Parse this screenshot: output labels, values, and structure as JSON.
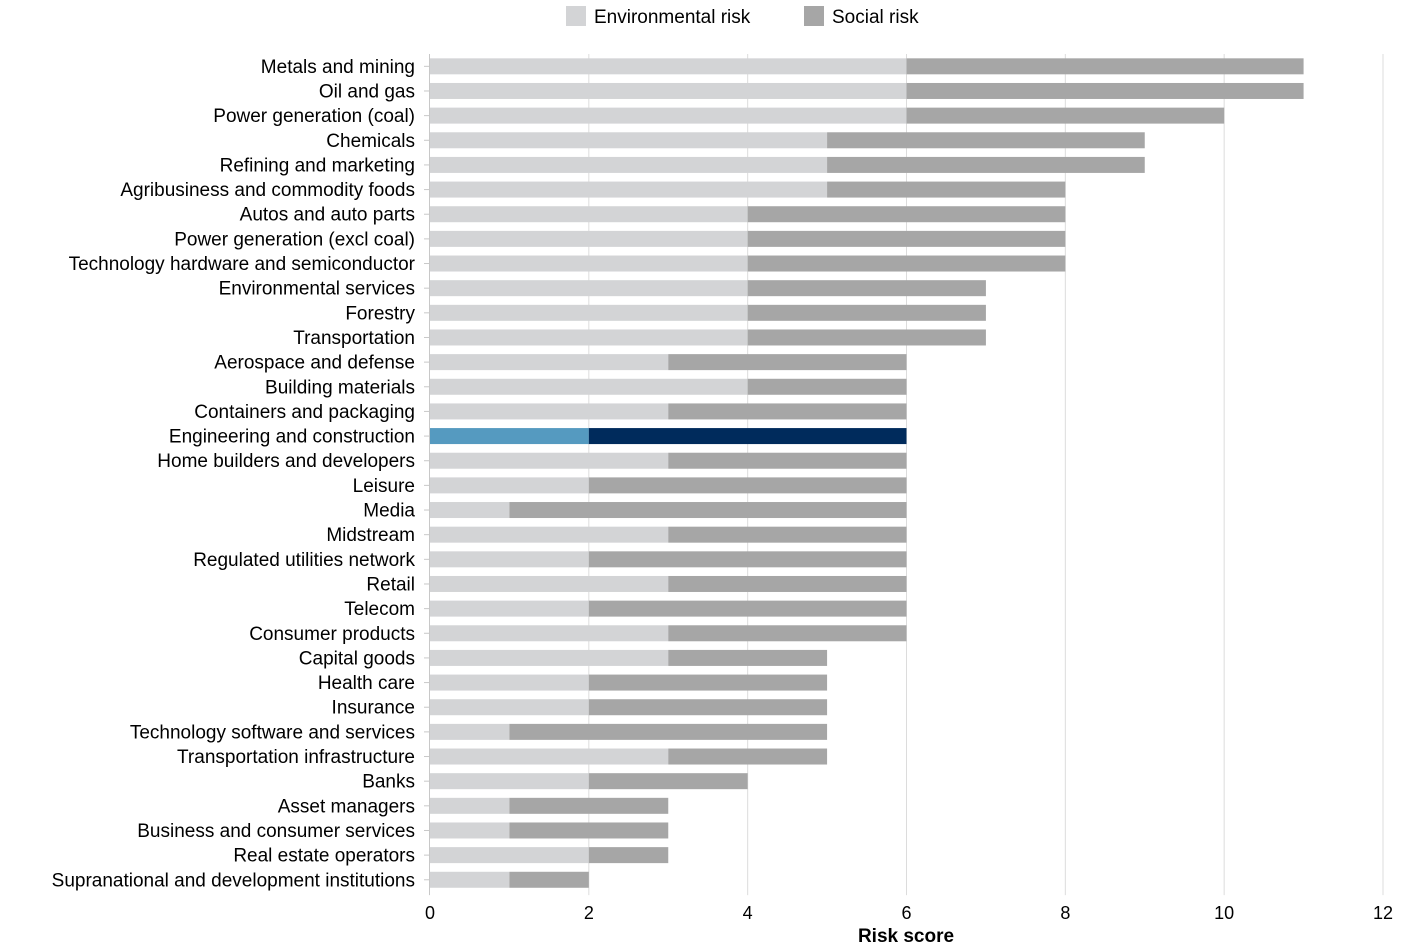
{
  "chart_data": {
    "type": "bar",
    "orientation": "horizontal",
    "stacked": true,
    "xlabel": "Risk score",
    "xlim": [
      0,
      12
    ],
    "xticks": [
      0,
      2,
      4,
      6,
      8,
      10,
      12
    ],
    "grid": "vertical",
    "legend_position": "top",
    "categories": [
      "Metals and mining",
      "Oil and gas",
      "Power generation (coal)",
      "Chemicals",
      "Refining and marketing",
      "Agribusiness and commodity foods",
      "Autos and auto parts",
      "Power generation (excl coal)",
      "Technology hardware and semiconductor",
      "Environmental services",
      "Forestry",
      "Transportation",
      "Aerospace and defense",
      "Building materials",
      "Containers and packaging",
      "Engineering and construction",
      "Home builders and developers",
      "Leisure",
      "Media",
      "Midstream",
      "Regulated utilities network",
      "Retail",
      "Telecom",
      "Consumer products",
      "Capital goods",
      "Health care",
      "Insurance",
      "Technology software and services",
      "Transportation infrastructure",
      "Banks",
      "Asset managers",
      "Business and consumer services",
      "Real estate operators",
      "Supranational and development institutions"
    ],
    "series": [
      {
        "name": "Environmental risk",
        "color": "#d3d4d6",
        "highlight_color": "#559ac0",
        "values": [
          6,
          6,
          6,
          5,
          5,
          5,
          4,
          4,
          4,
          4,
          4,
          4,
          3,
          4,
          3,
          2,
          3,
          2,
          1,
          3,
          2,
          3,
          2,
          3,
          3,
          2,
          2,
          1,
          3,
          2,
          1,
          1,
          2,
          1
        ]
      },
      {
        "name": "Social risk",
        "color": "#a6a6a6",
        "highlight_color": "#002b5c",
        "values": [
          5,
          5,
          4,
          4,
          4,
          3,
          4,
          4,
          4,
          3,
          3,
          3,
          3,
          2,
          3,
          4,
          3,
          4,
          5,
          3,
          4,
          3,
          4,
          3,
          2,
          3,
          3,
          4,
          2,
          2,
          2,
          2,
          1,
          1
        ]
      }
    ],
    "highlighted_category": "Engineering and construction"
  }
}
